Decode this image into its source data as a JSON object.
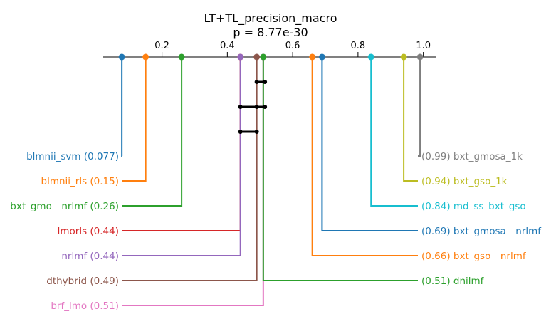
{
  "chart_data": {
    "type": "critical-difference",
    "title": "LT+TL_precision_macro",
    "subtitle": "p = 8.77e-30",
    "xlim": [
      0.02,
      1.04
    ],
    "ticks": [
      {
        "value": 0.2,
        "label": "0.2"
      },
      {
        "value": 0.4,
        "label": "0.4"
      },
      {
        "value": 0.6,
        "label": "0.6"
      },
      {
        "value": 0.8,
        "label": "0.8"
      },
      {
        "value": 1.0,
        "label": "1.0"
      }
    ],
    "left_items": [
      {
        "name": "blmnii_svm",
        "value": 0.077,
        "text": "blmnii_svm (0.077)",
        "color": "#1f77b4"
      },
      {
        "name": "blmnii_rls",
        "value": 0.15,
        "text": "blmnii_rls (0.15)",
        "color": "#ff7f0e"
      },
      {
        "name": "bxt_gmo__nrlmf",
        "value": 0.26,
        "text": "bxt_gmo__nrlmf (0.26)",
        "color": "#2ca02c"
      },
      {
        "name": "lmorls",
        "value": 0.44,
        "text": "lmorls (0.44)",
        "color": "#d62728"
      },
      {
        "name": "nrlmf",
        "value": 0.44,
        "text": "nrlmf (0.44)",
        "color": "#9467bd"
      },
      {
        "name": "dthybrid",
        "value": 0.49,
        "text": "dthybrid (0.49)",
        "color": "#8c564b"
      },
      {
        "name": "brf_lmo",
        "value": 0.51,
        "text": "brf_lmo (0.51)",
        "color": "#e377c2"
      }
    ],
    "right_items": [
      {
        "name": "bxt_gmosa_1k",
        "value": 0.99,
        "text": "(0.99) bxt_gmosa_1k",
        "color": "#7f7f7f"
      },
      {
        "name": "bxt_gso_1k",
        "value": 0.94,
        "text": "(0.94) bxt_gso_1k",
        "color": "#bcbd22"
      },
      {
        "name": "md_ss_bxt_gso",
        "value": 0.84,
        "text": "(0.84) md_ss_bxt_gso",
        "color": "#17becf"
      },
      {
        "name": "bxt_gmosa__nrlmf",
        "value": 0.69,
        "text": "(0.69) bxt_gmosa__nrlmf",
        "color": "#1f77b4"
      },
      {
        "name": "bxt_gso__nrlmf",
        "value": 0.66,
        "text": "(0.66) bxt_gso__nrlmf",
        "color": "#ff7f0e"
      },
      {
        "name": "dnilmf",
        "value": 0.51,
        "text": "(0.51) dnilmf",
        "color": "#2ca02c"
      }
    ],
    "cliques": [
      {
        "from": 0.49,
        "to": 0.515,
        "points": [
          0.49,
          0.515
        ]
      },
      {
        "from": 0.44,
        "to": 0.515,
        "points": [
          0.44,
          0.49,
          0.515
        ]
      },
      {
        "from": 0.44,
        "to": 0.49,
        "points": [
          0.44,
          0.49
        ]
      }
    ]
  }
}
